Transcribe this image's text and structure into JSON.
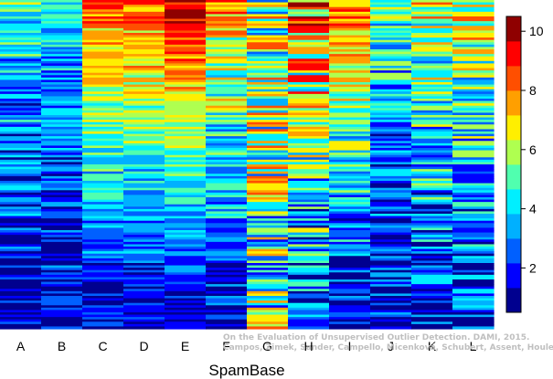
{
  "chart_data": {
    "type": "heatmap",
    "title": "",
    "xlabel": "SpamBase",
    "ylabel": "",
    "columns": [
      "A",
      "B",
      "C",
      "D",
      "E",
      "F",
      "G",
      "H",
      "I",
      "J",
      "K",
      "L"
    ],
    "column_profiles": [
      {
        "name": "A",
        "top": 4.5,
        "bottom": 1.0,
        "noise": 2.0
      },
      {
        "name": "B",
        "top": 4.0,
        "bottom": 1.0,
        "noise": 1.8
      },
      {
        "name": "C",
        "top": 8.5,
        "bottom": 1.0,
        "noise": 1.5
      },
      {
        "name": "D",
        "top": 8.5,
        "bottom": 1.0,
        "noise": 1.5
      },
      {
        "name": "E",
        "top": 9.8,
        "bottom": 1.0,
        "noise": 1.2
      },
      {
        "name": "F",
        "top": 7.5,
        "bottom": 1.0,
        "noise": 2.2
      },
      {
        "name": "G",
        "top": 5.5,
        "bottom": 5.0,
        "noise": 3.5
      },
      {
        "name": "H",
        "top": 8.0,
        "bottom": 2.0,
        "noise": 3.0
      },
      {
        "name": "I",
        "top": 8.0,
        "bottom": 1.0,
        "noise": 2.0
      },
      {
        "name": "J",
        "top": 5.0,
        "bottom": 1.0,
        "noise": 2.2
      },
      {
        "name": "K",
        "top": 6.5,
        "bottom": 1.5,
        "noise": 2.5
      },
      {
        "name": "L",
        "top": 6.5,
        "bottom": 1.5,
        "noise": 2.5
      }
    ],
    "colorbar": {
      "min": 0.5,
      "max": 10.5,
      "ticks": [
        2,
        4,
        6,
        8,
        10
      ],
      "colors": [
        "#00008f",
        "#0000ff",
        "#0060ff",
        "#00b0ff",
        "#00efff",
        "#50ffaf",
        "#afff50",
        "#ffef00",
        "#ff9f00",
        "#ff4f00",
        "#ff0000",
        "#8f0000"
      ]
    },
    "grid": false,
    "legend": "colorbar-right"
  },
  "watermark": {
    "line1": "On the Evaluation of Unsupervised Outlier Detection. DAMI, 2015.",
    "line2": "Campos, Zimek, Sander, Campello, Micenková, Schubert, Assent, Houle"
  }
}
